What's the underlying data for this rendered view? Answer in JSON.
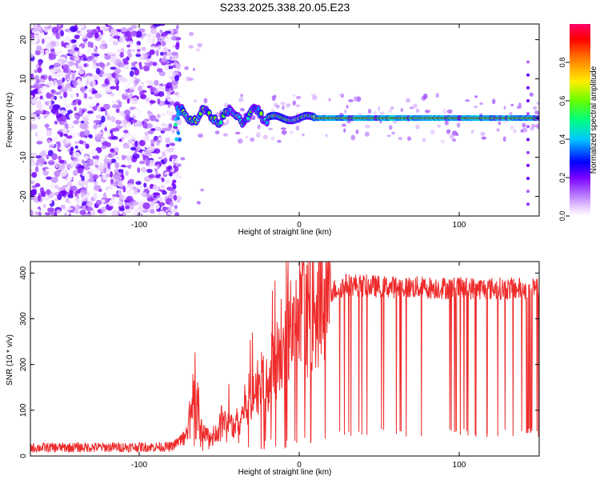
{
  "title": "S233.2025.338.20.05.E23",
  "chart_data": [
    {
      "type": "heatmap",
      "xlabel": "Height of straight line (km)",
      "ylabel": "Frequency (Hz)",
      "xlim": [
        -168,
        150
      ],
      "ylim": [
        -25,
        24
      ],
      "xticks": [
        -100,
        0,
        100
      ],
      "yticks": [
        -20,
        -10,
        0,
        10,
        20
      ],
      "colorbar": {
        "label": "Normalized spectral amplitude",
        "range": [
          0,
          1
        ],
        "ticks": [
          0.0,
          0.2,
          0.4,
          0.6,
          0.8
        ],
        "colors": [
          "#ffffff",
          "#cc66ff",
          "#7a00ff",
          "#0000ff",
          "#00e5ff",
          "#00ff66",
          "#a8ff00",
          "#ffee00",
          "#ff9900",
          "#ff0000",
          "#ff0080"
        ]
      },
      "features": {
        "noise_region_x": [
          -168,
          -75
        ],
        "sparse_region_x": [
          -75,
          150
        ],
        "signal_line_freq_hz": 0,
        "signal_onset_x": -76,
        "signal_strong_from_x": 10
      }
    },
    {
      "type": "line",
      "series_name": "SNR",
      "color": "#ee2b2b",
      "xlabel": "Height of straight line (km)",
      "ylabel": "SNR (10 * v/v)",
      "xlim": [
        -168,
        150
      ],
      "ylim": [
        0,
        425
      ],
      "xticks": [
        -100,
        0,
        100
      ],
      "yticks": [
        0,
        100,
        200,
        300,
        400
      ],
      "profile": [
        [
          -168,
          18
        ],
        [
          -80,
          20
        ],
        [
          -70,
          45
        ],
        [
          -66,
          150
        ],
        [
          -62,
          60
        ],
        [
          -55,
          35
        ],
        [
          -45,
          80
        ],
        [
          -40,
          60
        ],
        [
          -30,
          140
        ],
        [
          -20,
          170
        ],
        [
          -10,
          230
        ],
        [
          0,
          280
        ],
        [
          10,
          330
        ],
        [
          20,
          360
        ],
        [
          30,
          375
        ],
        [
          50,
          370
        ],
        [
          80,
          368
        ],
        [
          120,
          366
        ],
        [
          150,
          365
        ]
      ]
    }
  ]
}
